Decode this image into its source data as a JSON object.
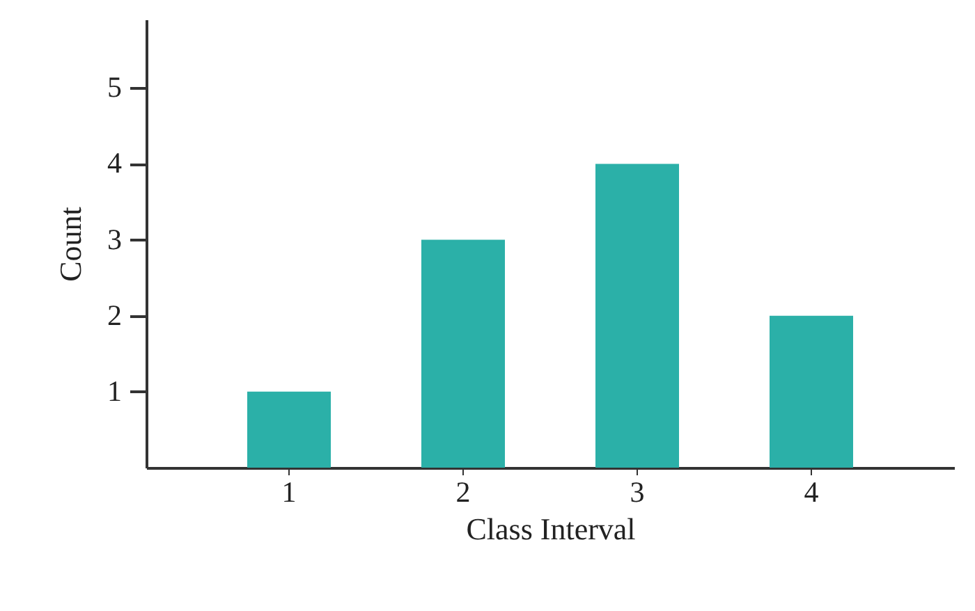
{
  "chart_data": {
    "type": "bar",
    "xlabel": "Class Interval",
    "ylabel": "Count",
    "categories": [
      "1",
      "2",
      "3",
      "4"
    ],
    "values": [
      1,
      3,
      4,
      2
    ],
    "color": "#2bb0a8",
    "ylim": [
      0,
      5.9
    ],
    "yticks": [
      1,
      2,
      3,
      4,
      5
    ],
    "grid": false
  }
}
